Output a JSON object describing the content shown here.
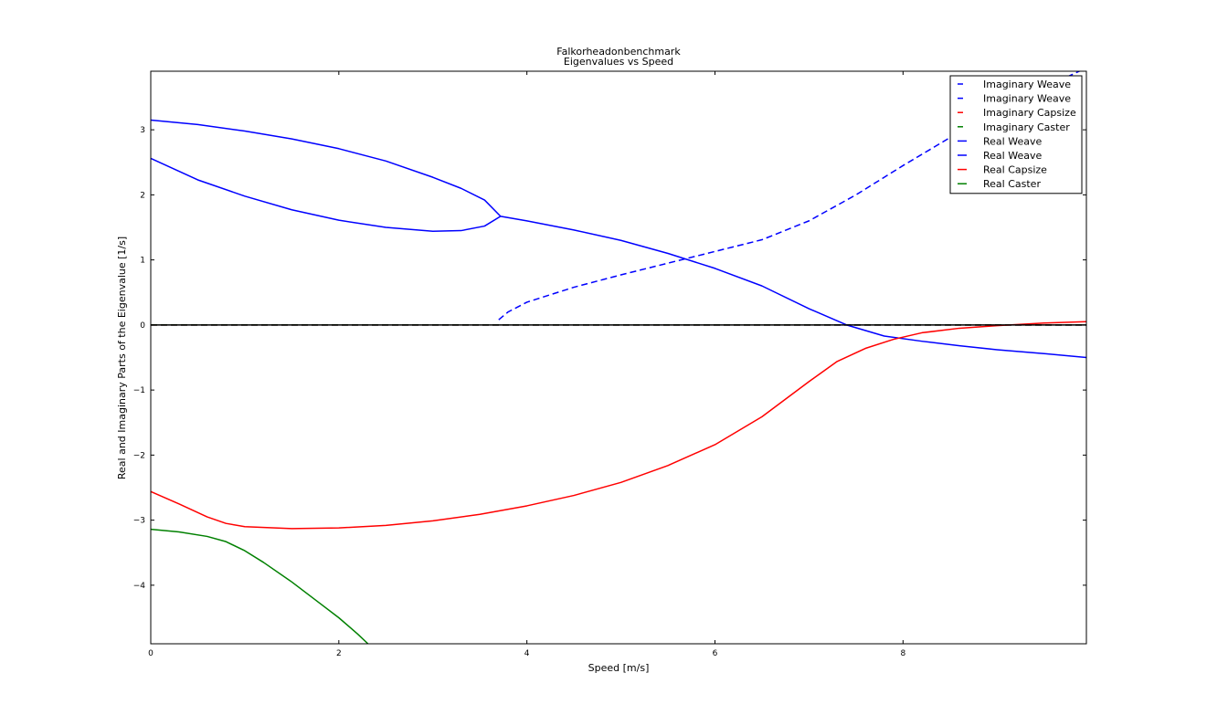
{
  "chart_data": {
    "type": "line",
    "title": "Falkorheadonbenchmark",
    "subtitle": "Eigenvalues vs Speed",
    "xlabel": "Speed [m/s]",
    "ylabel": "Real and Imaginary Parts of the Eigenvalue [1/s]",
    "xlim": [
      0,
      9.95
    ],
    "ylim": [
      -4.9,
      3.9
    ],
    "xticks": [
      0,
      2,
      4,
      6,
      8
    ],
    "yticks": [
      -4,
      -3,
      -2,
      -1,
      0,
      1,
      2,
      3
    ],
    "xtick_labels": [
      "0",
      "2",
      "4",
      "6",
      "8"
    ],
    "ytick_labels": [
      "−4",
      "−3",
      "−2",
      "−1",
      "0",
      "1",
      "2",
      "3"
    ],
    "grid": false,
    "legend_position": "top-right",
    "series": [
      {
        "name": "Imaginary Weave",
        "color": "#0000ff",
        "style": "dashed",
        "x": [
          3.7,
          3.8,
          4.0,
          4.5,
          5.0,
          5.5,
          6.0,
          6.5,
          7.0,
          7.5,
          8.0,
          8.5,
          9.0,
          9.5,
          9.95
        ],
        "y": [
          0.08,
          0.2,
          0.35,
          0.58,
          0.77,
          0.95,
          1.13,
          1.31,
          1.6,
          2.0,
          2.45,
          2.88,
          3.3,
          3.65,
          3.95
        ]
      },
      {
        "name": "Imaginary Weave",
        "color": "#0000ff",
        "style": "dashed",
        "x": [
          0,
          9.95
        ],
        "y": [
          0,
          0
        ]
      },
      {
        "name": "Imaginary Capsize",
        "color": "#ff0000",
        "style": "dashed",
        "x": [
          0,
          9.95
        ],
        "y": [
          0,
          0
        ]
      },
      {
        "name": "Imaginary Caster",
        "color": "#008000",
        "style": "dashed",
        "x": [
          0,
          9.95
        ],
        "y": [
          0,
          0
        ]
      },
      {
        "name": "Real Weave",
        "color": "#0000ff",
        "style": "solid",
        "x": [
          0,
          0.5,
          1.0,
          1.5,
          2.0,
          2.5,
          3.0,
          3.3,
          3.55,
          3.72,
          4.0,
          4.5,
          5.0,
          5.5,
          6.0,
          6.5,
          7.0,
          7.4,
          7.8,
          8.2,
          8.6,
          9.0,
          9.5,
          9.95
        ],
        "y": [
          3.15,
          3.08,
          2.98,
          2.86,
          2.71,
          2.52,
          2.27,
          2.1,
          1.92,
          1.67,
          1.6,
          1.46,
          1.3,
          1.1,
          0.87,
          0.6,
          0.25,
          0.0,
          -0.17,
          -0.25,
          -0.32,
          -0.38,
          -0.44,
          -0.5
        ]
      },
      {
        "name": "Real Weave",
        "color": "#0000ff",
        "style": "solid",
        "x": [
          0,
          0.5,
          1.0,
          1.5,
          2.0,
          2.5,
          3.0,
          3.3,
          3.55,
          3.72
        ],
        "y": [
          2.56,
          2.23,
          1.98,
          1.77,
          1.61,
          1.5,
          1.44,
          1.45,
          1.52,
          1.67
        ]
      },
      {
        "name": "Real Capsize",
        "color": "#ff0000",
        "style": "solid",
        "x": [
          0,
          0.3,
          0.6,
          0.8,
          1.0,
          1.5,
          2.0,
          2.5,
          3.0,
          3.5,
          4.0,
          4.5,
          5.0,
          5.5,
          6.0,
          6.5,
          7.0,
          7.3,
          7.6,
          7.9,
          8.2,
          8.6,
          9.0,
          9.5,
          9.95
        ],
        "y": [
          -2.56,
          -2.75,
          -2.95,
          -3.05,
          -3.1,
          -3.13,
          -3.12,
          -3.08,
          -3.01,
          -2.91,
          -2.78,
          -2.62,
          -2.42,
          -2.16,
          -1.84,
          -1.41,
          -0.87,
          -0.56,
          -0.36,
          -0.22,
          -0.12,
          -0.05,
          -0.01,
          0.03,
          0.05
        ]
      },
      {
        "name": "Real Caster",
        "color": "#008000",
        "style": "solid",
        "x": [
          0,
          0.3,
          0.6,
          0.8,
          1.0,
          1.2,
          1.5,
          1.8,
          2.0,
          2.2,
          2.31
        ],
        "y": [
          -3.14,
          -3.18,
          -3.25,
          -3.33,
          -3.47,
          -3.65,
          -3.95,
          -4.28,
          -4.5,
          -4.75,
          -4.9
        ]
      }
    ]
  }
}
